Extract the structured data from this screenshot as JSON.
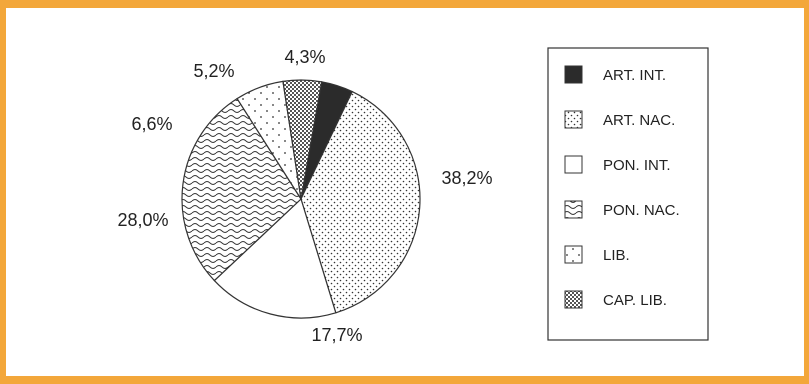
{
  "chart_data": {
    "type": "pie",
    "title": "",
    "slices": [
      {
        "label": "ART. INT.",
        "value": 4.3,
        "display": "4,3%",
        "pattern": "solid-black"
      },
      {
        "label": "ART. NAC.",
        "value": 38.2,
        "display": "38,2%",
        "pattern": "fine-dots"
      },
      {
        "label": "PON. INT.",
        "value": 17.7,
        "display": "17,7%",
        "pattern": "white"
      },
      {
        "label": "PON. NAC.",
        "value": 28.0,
        "display": "28,0%",
        "pattern": "waves"
      },
      {
        "label": "LIB.",
        "value": 6.6,
        "display": "6,6%",
        "pattern": "sparse-dots"
      },
      {
        "label": "CAP. LIB.",
        "value": 5.2,
        "display": "5,2%",
        "pattern": "checker"
      }
    ],
    "legend_position": "right",
    "colors": {
      "frame": "#f3a73a",
      "ink": "#222222",
      "solid": "#2b2b2b"
    }
  }
}
